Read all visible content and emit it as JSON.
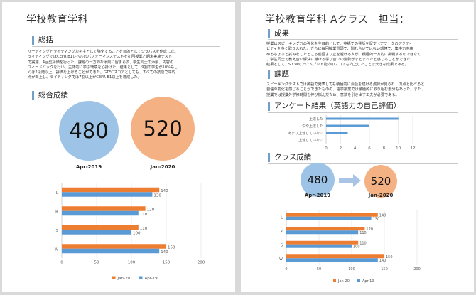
{
  "colors": {
    "jan20": "#ed7d31",
    "apr19": "#5b9bd5",
    "circle_blue": "#9dc3e6",
    "circle_orange": "#f4b183",
    "accent": "#6f9fca"
  },
  "page1": {
    "title": "学校教育学科",
    "sections": {
      "summary": "総括",
      "overall": "総合成績"
    },
    "summary_lines": [
      "リーディングとライティング力を主として強化することを目的としてシラバスを作成した。",
      "ライティングではCEFR B1レベルのパフォーマンステストを初回授業と期末実施テスト",
      "で実施、4回型評価を行った。課題の一方的な添削に留まらず、学生同士の添削、内容の",
      "フィードバックを行い、主体的に学ぶ環境を心掛けた。結果として、9割の学生が10%もし",
      "くは2段階以上、評価を上げることができた。GTECスコアとしても、すべての技能で平均",
      "点が向上し、ライティングでは7割以上がCEFR B1以上を達成した。"
    ],
    "scores": [
      {
        "value": "480",
        "label": "Apr-2019"
      },
      {
        "value": "520",
        "label": "Jan-2020"
      }
    ]
  },
  "page2": {
    "title": "学校教育学科 Aクラス　担当：",
    "sections": {
      "results": "成果",
      "issues": "課題",
      "survey": "アンケート結果（英語力の自己評価）",
      "class": "クラス成績"
    },
    "results_lines": [
      "授業はスピーキング力の強化を主目的として、英語での発話を促すペアワークのアクティ",
      "ビティを多く取り入れた。さらに毎回授業冒頭で、馴れ合いではない環境で、集中力を高",
      "めるちょっと試みをしたところ前回より正を越ける人が、積極的一方的に挑戦するのではなく",
      "、学生同士で教え合い解決に導ける学び合いの姿勢がまとまれたと感じることができた。",
      "結果として、S・Wのアウトプット能力のスコアも向上したことは大きな成果である。"
    ],
    "issues_lines": [
      "スピーキングテストでは英語で発表しても積極的に会話を続ける姿勢が見られ、力点と比べると",
      "自信の変化を感じることができたものの、語学授業では積極的に取り組む部分もあった。また、",
      "授業では授業外学修時間も伸び悩んだため、意欲を引き出す工夫が必要である。"
    ],
    "scores": [
      {
        "value": "480",
        "label": "Apr-2019"
      },
      {
        "value": "520",
        "label": "Jan-2020"
      }
    ]
  },
  "chart_data": [
    {
      "type": "bar",
      "orientation": "horizontal",
      "categories": [
        "L",
        "R",
        "S",
        "W"
      ],
      "series": [
        {
          "name": "Jan-20",
          "values": [
            140,
            120,
            110,
            150
          ]
        },
        {
          "name": "Apr-19",
          "values": [
            130,
            110,
            100,
            140
          ]
        }
      ],
      "xlim": [
        0,
        200
      ],
      "xticks": [
        "0",
        "50",
        "100",
        "150",
        "200"
      ],
      "grid": true,
      "legend": "bottom"
    },
    {
      "type": "bar",
      "orientation": "horizontal",
      "categories": [
        "上達した",
        "やや上達した",
        "あまり上達していない",
        "上達していない"
      ],
      "series": [
        {
          "values": [
            10,
            6,
            3,
            0
          ]
        }
      ],
      "xlim": [
        0,
        12
      ],
      "xticks": [
        "0",
        "2",
        "4",
        "6",
        "8",
        "10",
        "12"
      ],
      "grid": true
    },
    {
      "type": "bar",
      "orientation": "horizontal",
      "categories": [
        "L",
        "R",
        "S",
        "W"
      ],
      "series": [
        {
          "name": "Jan-20",
          "values": [
            140,
            120,
            110,
            150
          ]
        },
        {
          "name": "Apr-19",
          "values": [
            130,
            110,
            100,
            140
          ]
        }
      ],
      "xlim": [
        0,
        200
      ],
      "xticks": [
        "0",
        "50",
        "100",
        "150",
        "200"
      ],
      "grid": true,
      "legend": "bottom"
    }
  ]
}
